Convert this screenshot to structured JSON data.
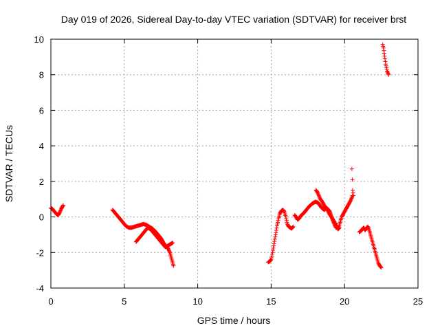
{
  "chart_data": {
    "type": "scatter",
    "title": "Day 019 of 2026, Sidereal Day-to-day VTEC variation (SDTVAR) for receiver brst",
    "xlabel": "GPS time / hours",
    "ylabel": "SDTVAR / TECUs",
    "xlim": [
      0,
      25
    ],
    "ylim": [
      -4,
      10
    ],
    "xticks": [
      0,
      5,
      10,
      15,
      20,
      25
    ],
    "yticks": [
      -4,
      -2,
      0,
      2,
      4,
      6,
      8,
      10
    ],
    "xtick_labels": [
      "0",
      "5",
      "10",
      "15",
      "20",
      "25"
    ],
    "ytick_labels": [
      "-4",
      "-2",
      "0",
      "2",
      "4",
      "6",
      "8",
      "10"
    ],
    "grid": true,
    "marker": "+",
    "marker_color": "#ff0000",
    "series": [
      {
        "name": "SDTVAR",
        "segments": [
          [
            [
              0.0,
              0.5
            ],
            [
              0.1,
              0.45
            ],
            [
              0.2,
              0.35
            ],
            [
              0.3,
              0.25
            ],
            [
              0.4,
              0.15
            ],
            [
              0.5,
              0.1
            ],
            [
              0.6,
              0.25
            ],
            [
              0.7,
              0.45
            ],
            [
              0.8,
              0.6
            ],
            [
              0.85,
              0.65
            ]
          ],
          [
            [
              4.2,
              0.4
            ],
            [
              4.3,
              0.3
            ],
            [
              4.4,
              0.2
            ],
            [
              4.5,
              0.1
            ],
            [
              4.6,
              0.0
            ],
            [
              4.7,
              -0.1
            ],
            [
              4.8,
              -0.2
            ],
            [
              4.9,
              -0.3
            ],
            [
              5.0,
              -0.4
            ],
            [
              5.1,
              -0.5
            ],
            [
              5.3,
              -0.6
            ],
            [
              5.5,
              -0.6
            ],
            [
              5.7,
              -0.55
            ],
            [
              5.9,
              -0.5
            ],
            [
              6.1,
              -0.45
            ],
            [
              6.3,
              -0.4
            ],
            [
              6.5,
              -0.45
            ],
            [
              6.7,
              -0.55
            ],
            [
              6.9,
              -0.65
            ],
            [
              7.1,
              -0.8
            ],
            [
              7.3,
              -1.0
            ],
            [
              7.5,
              -1.2
            ],
            [
              7.7,
              -1.5
            ],
            [
              7.9,
              -1.7
            ],
            [
              8.0,
              -1.8
            ],
            [
              8.1,
              -2.0
            ],
            [
              8.2,
              -2.3
            ],
            [
              8.3,
              -2.6
            ],
            [
              8.35,
              -2.75
            ]
          ],
          [
            [
              5.8,
              -1.4
            ],
            [
              6.0,
              -1.2
            ],
            [
              6.2,
              -1.0
            ],
            [
              6.4,
              -0.8
            ],
            [
              6.6,
              -0.6
            ],
            [
              6.8,
              -0.7
            ],
            [
              7.0,
              -0.9
            ],
            [
              7.2,
              -1.1
            ],
            [
              7.4,
              -1.3
            ],
            [
              7.6,
              -1.5
            ],
            [
              7.8,
              -1.7
            ],
            [
              8.0,
              -1.6
            ],
            [
              8.2,
              -1.5
            ],
            [
              8.3,
              -1.45
            ]
          ],
          [
            [
              14.8,
              -2.55
            ],
            [
              14.9,
              -2.5
            ],
            [
              15.0,
              -2.4
            ],
            [
              15.1,
              -2.0
            ],
            [
              15.2,
              -1.5
            ],
            [
              15.3,
              -1.0
            ],
            [
              15.4,
              -0.5
            ],
            [
              15.5,
              -0.1
            ],
            [
              15.6,
              0.2
            ],
            [
              15.7,
              0.35
            ],
            [
              15.8,
              0.4
            ],
            [
              15.9,
              0.3
            ],
            [
              16.0,
              0.0
            ],
            [
              16.1,
              -0.4
            ],
            [
              16.2,
              -0.55
            ],
            [
              16.3,
              -0.6
            ],
            [
              16.4,
              -0.65
            ],
            [
              16.5,
              -0.55
            ]
          ],
          [
            [
              16.6,
              0.1
            ],
            [
              16.7,
              0.0
            ],
            [
              16.8,
              -0.15
            ],
            [
              16.9,
              -0.1
            ],
            [
              17.0,
              0.05
            ],
            [
              17.2,
              0.2
            ],
            [
              17.4,
              0.4
            ],
            [
              17.6,
              0.6
            ],
            [
              17.8,
              0.75
            ],
            [
              18.0,
              0.85
            ],
            [
              18.2,
              0.8
            ],
            [
              18.4,
              0.55
            ],
            [
              18.6,
              0.4
            ],
            [
              18.8,
              0.5
            ],
            [
              19.0,
              0.3
            ],
            [
              19.2,
              -0.2
            ],
            [
              19.4,
              -0.6
            ],
            [
              19.6,
              -0.6
            ],
            [
              19.7,
              -0.3
            ],
            [
              19.8,
              0.0
            ],
            [
              20.0,
              0.3
            ],
            [
              20.2,
              0.6
            ],
            [
              20.4,
              0.9
            ],
            [
              20.5,
              1.1
            ],
            [
              20.55,
              1.2
            ]
          ],
          [
            [
              18.05,
              1.5
            ],
            [
              18.15,
              1.4
            ],
            [
              18.25,
              1.2
            ],
            [
              18.35,
              1.0
            ],
            [
              18.45,
              0.9
            ],
            [
              18.55,
              0.75
            ],
            [
              18.65,
              0.6
            ],
            [
              18.8,
              0.45
            ],
            [
              18.95,
              0.2
            ],
            [
              19.1,
              0.0
            ],
            [
              19.25,
              -0.2
            ],
            [
              19.4,
              -0.4
            ],
            [
              19.55,
              -0.7
            ],
            [
              19.65,
              -0.6
            ]
          ],
          [
            [
              20.5,
              2.7
            ],
            [
              20.55,
              1.5
            ],
            [
              20.6,
              1.2
            ]
          ],
          [
            [
              21.0,
              -0.85
            ],
            [
              21.1,
              -0.8
            ],
            [
              21.2,
              -0.7
            ],
            [
              21.3,
              -0.6
            ],
            [
              21.4,
              -0.75
            ],
            [
              21.5,
              -0.6
            ],
            [
              21.6,
              -0.55
            ],
            [
              21.7,
              -0.8
            ],
            [
              21.8,
              -1.1
            ],
            [
              21.9,
              -1.4
            ],
            [
              22.0,
              -1.7
            ],
            [
              22.1,
              -2.0
            ],
            [
              22.2,
              -2.3
            ],
            [
              22.3,
              -2.6
            ],
            [
              22.4,
              -2.75
            ],
            [
              22.5,
              -2.85
            ]
          ],
          [
            [
              22.6,
              9.7
            ],
            [
              22.65,
              9.5
            ],
            [
              22.7,
              9.2
            ],
            [
              22.75,
              8.9
            ],
            [
              22.8,
              8.6
            ],
            [
              22.85,
              8.4
            ],
            [
              22.9,
              8.2
            ],
            [
              22.95,
              8.1
            ],
            [
              23.0,
              8.0
            ]
          ]
        ]
      }
    ]
  }
}
